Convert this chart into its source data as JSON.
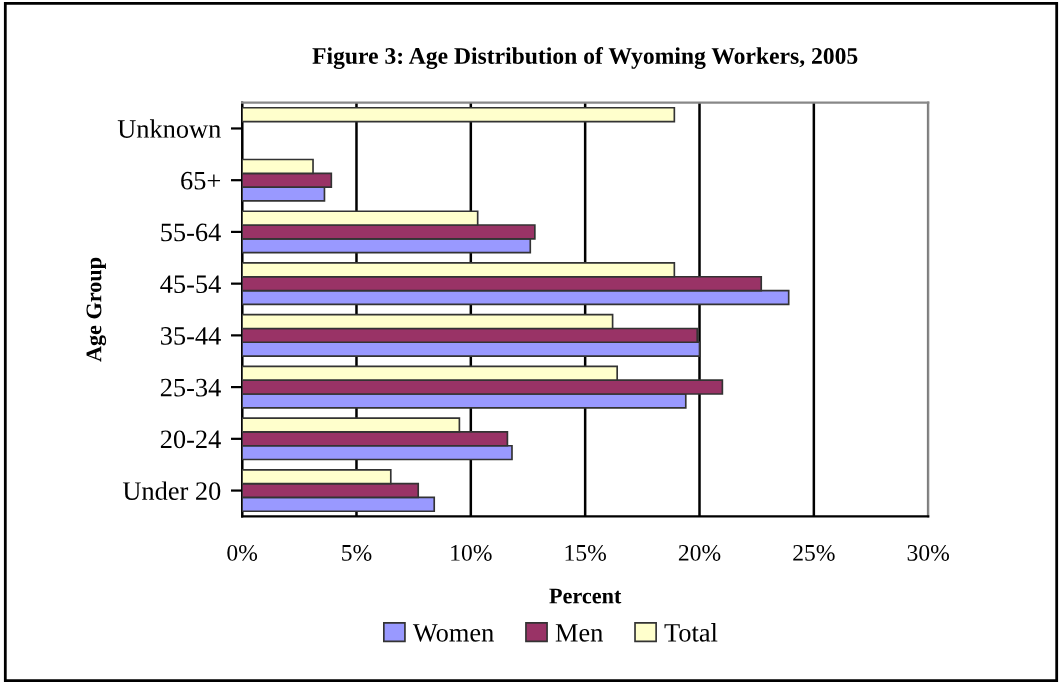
{
  "chart_data": {
    "type": "bar",
    "orientation": "horizontal",
    "title": "Figure 3: Age Distribution of Wyoming Workers, 2005",
    "xlabel": "Percent",
    "ylabel": "Age Group",
    "categories": [
      "Unknown",
      "65+",
      "55-64",
      "45-54",
      "35-44",
      "25-34",
      "20-24",
      "Under 20"
    ],
    "series": [
      {
        "name": "Women",
        "color": "#9999ff",
        "values": [
          null,
          3.6,
          12.6,
          23.9,
          20.0,
          19.4,
          11.8,
          8.4
        ]
      },
      {
        "name": "Men",
        "color": "#993366",
        "values": [
          null,
          3.9,
          12.8,
          22.7,
          19.9,
          21.0,
          11.6,
          7.7
        ]
      },
      {
        "name": "Total",
        "color": "#ffffcc",
        "values": [
          18.9,
          3.1,
          10.3,
          18.9,
          16.2,
          16.4,
          9.5,
          6.5
        ]
      }
    ],
    "xlim": [
      0,
      30
    ],
    "xticks": [
      {
        "value": 0,
        "label": "0%"
      },
      {
        "value": 5,
        "label": "5%"
      },
      {
        "value": 10,
        "label": "10%"
      },
      {
        "value": 15,
        "label": "15%"
      },
      {
        "value": 20,
        "label": "20%"
      },
      {
        "value": 25,
        "label": "25%"
      },
      {
        "value": 30,
        "label": "30%"
      }
    ],
    "grid": "x",
    "legend": "bottom"
  }
}
